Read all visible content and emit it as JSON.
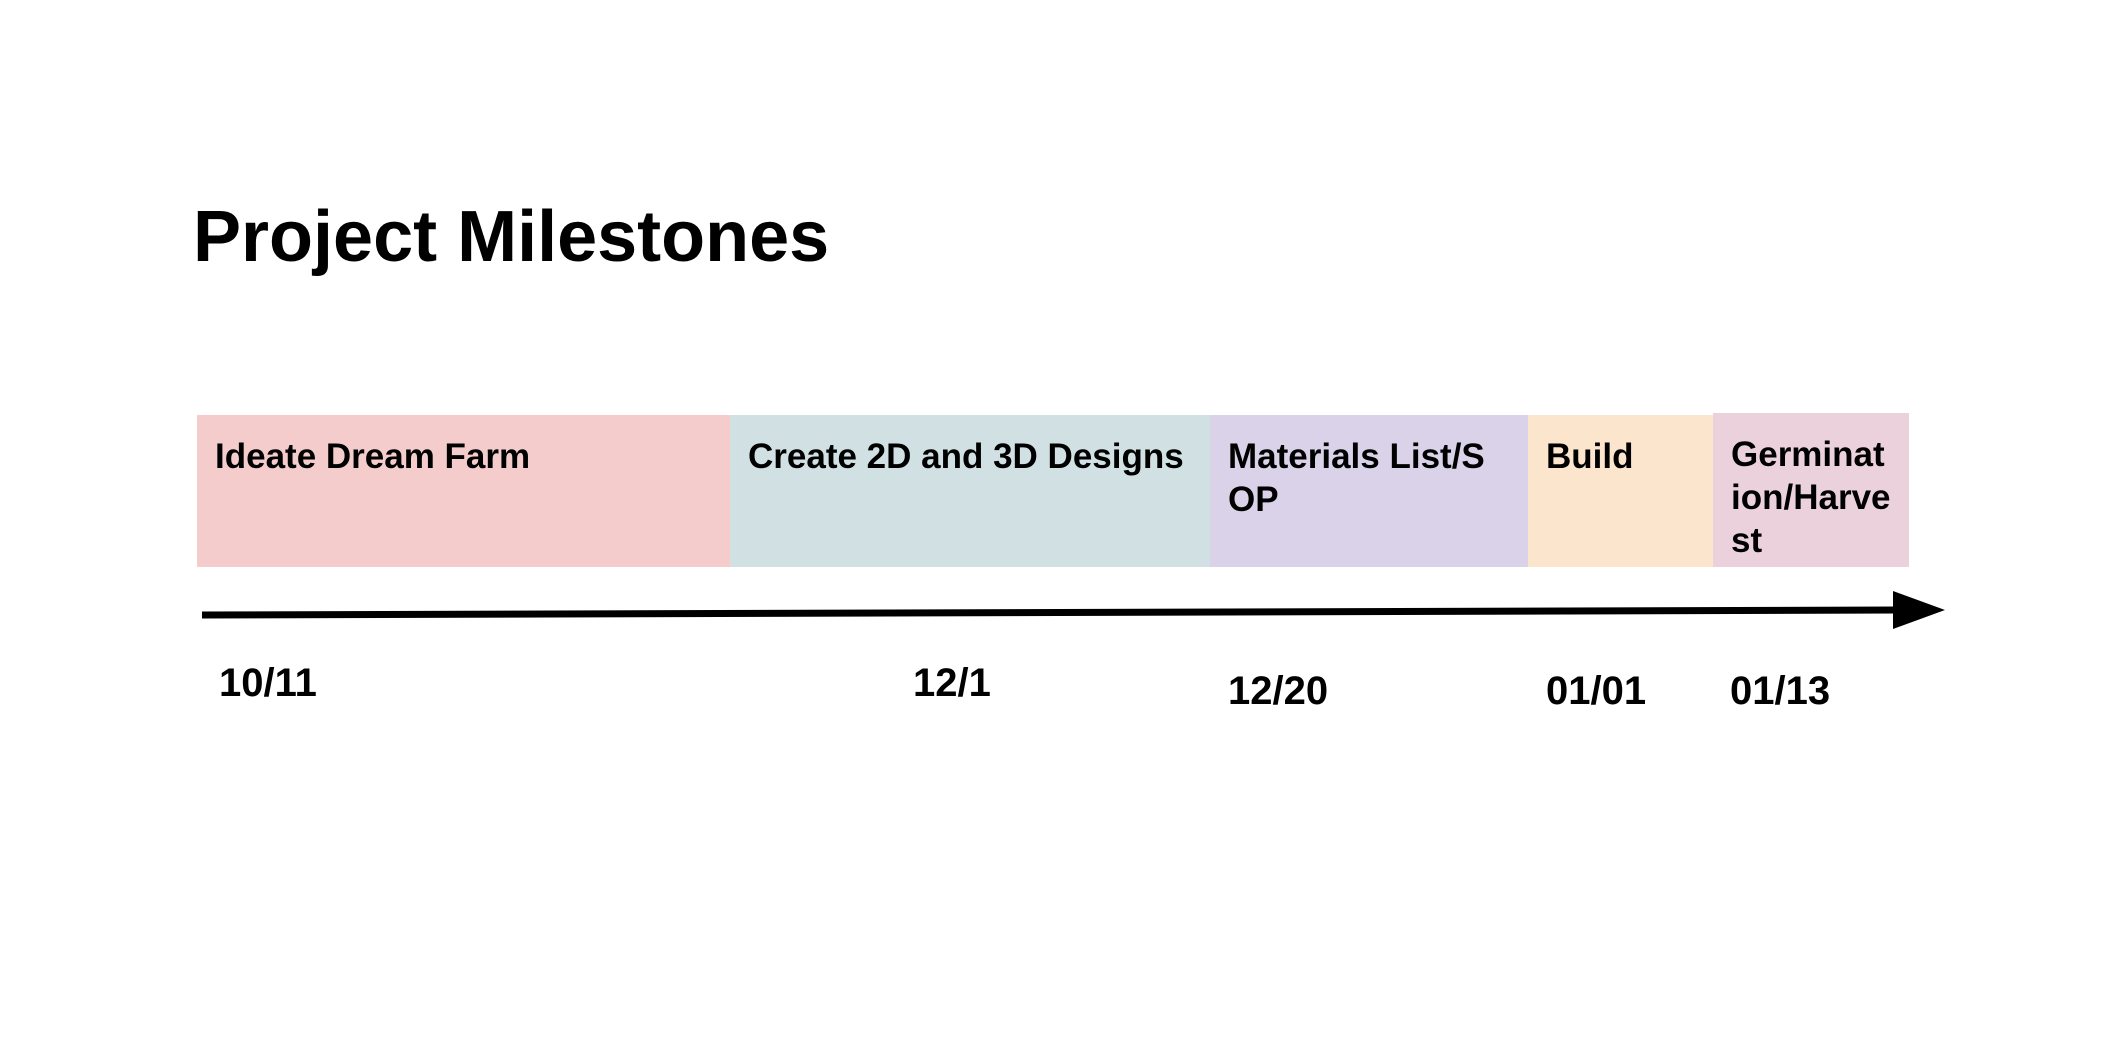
{
  "title": "Project Milestones",
  "phases": [
    {
      "label": "Ideate Dream Farm",
      "color": "#f4cccc"
    },
    {
      "label": "Create 2D and 3D Designs",
      "color": "#d0e0e3"
    },
    {
      "label": "Materials List/SOP",
      "color": "#d9d2e9"
    },
    {
      "label": "Build",
      "color": "#fce5cd"
    },
    {
      "label": "Germination/Harvest",
      "color": "#ead1dc"
    }
  ],
  "dates": [
    "10/11",
    "12/1",
    "12/20",
    "01/01",
    "01/13"
  ],
  "arrow_color": "#000000"
}
